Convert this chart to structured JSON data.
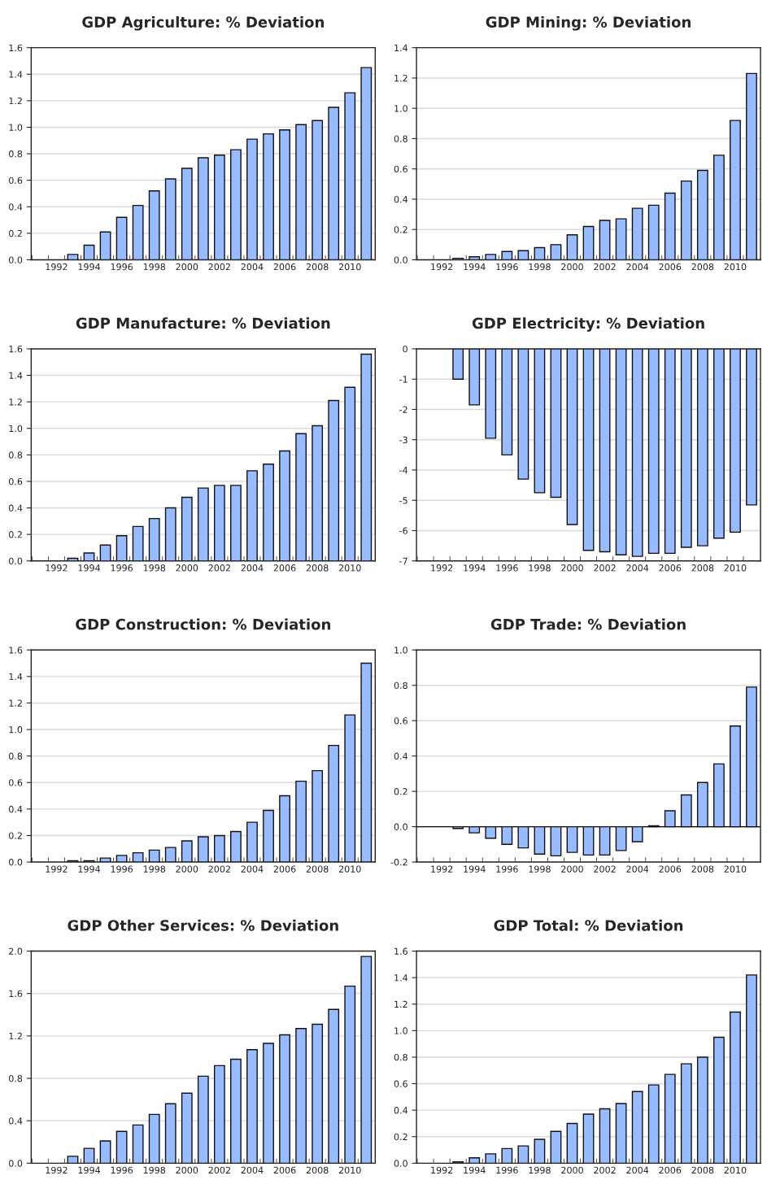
{
  "chart_data": [
    {
      "type": "bar",
      "title": "GDP Agriculture: % Deviation",
      "categories": [
        null,
        "1992",
        null,
        "1994",
        null,
        "1996",
        null,
        "1998",
        null,
        "2000",
        null,
        "2002",
        null,
        "2004",
        null,
        "2006",
        null,
        "2008",
        null,
        "2010",
        null
      ],
      "color": "#99bbff",
      "values": [
        null,
        null,
        0.04,
        0.11,
        0.21,
        0.32,
        0.41,
        0.52,
        0.61,
        0.69,
        0.77,
        0.79,
        0.83,
        0.91,
        0.95,
        0.98,
        1.02,
        1.05,
        1.15,
        1.26,
        1.45
      ],
      "ylim": [
        0,
        1.6
      ],
      "yticks": [
        {
          "value": 0,
          "label": "0.0"
        },
        {
          "value": 0.2,
          "label": "0.2"
        },
        {
          "value": 0.4,
          "label": "0.4"
        },
        {
          "value": 0.6,
          "label": "0.6"
        },
        {
          "value": 0.8,
          "label": "0.8"
        },
        {
          "value": 1.0,
          "label": "1.0"
        },
        {
          "value": 1.2,
          "label": "1.2"
        },
        {
          "value": 1.4,
          "label": "1.4"
        },
        {
          "value": 1.6,
          "label": "1.6"
        }
      ],
      "grid": "y"
    },
    {
      "type": "bar",
      "title": "GDP Mining: % Deviation",
      "categories": [
        null,
        "1992",
        null,
        "1994",
        null,
        "1996",
        null,
        "1998",
        null,
        "2000",
        null,
        "2002",
        null,
        "2004",
        null,
        "2006",
        null,
        "2008",
        null,
        "2010",
        null
      ],
      "color": "#99bbff",
      "values": [
        null,
        null,
        0.01,
        0.02,
        0.035,
        0.055,
        0.06,
        0.08,
        0.1,
        0.165,
        0.22,
        0.26,
        0.27,
        0.34,
        0.36,
        0.44,
        0.52,
        0.59,
        0.69,
        0.92,
        1.23
      ],
      "ylim": [
        0,
        1.4
      ],
      "yticks": [
        {
          "value": 0,
          "label": "0.0"
        },
        {
          "value": 0.2,
          "label": "0.2"
        },
        {
          "value": 0.4,
          "label": "0.4"
        },
        {
          "value": 0.6,
          "label": "0.6"
        },
        {
          "value": 0.8,
          "label": "0.8"
        },
        {
          "value": 1.0,
          "label": "1.0"
        },
        {
          "value": 1.2,
          "label": "1.2"
        },
        {
          "value": 1.4,
          "label": "1.4"
        }
      ],
      "grid": "y"
    },
    {
      "type": "bar",
      "title": "GDP Manufacture: % Deviation",
      "categories": [
        null,
        "1992",
        null,
        "1994",
        null,
        "1996",
        null,
        "1998",
        null,
        "2000",
        null,
        "2002",
        null,
        "2004",
        null,
        "2006",
        null,
        "2008",
        null,
        "2010",
        null
      ],
      "color": "#99bbff",
      "values": [
        null,
        null,
        0.02,
        0.06,
        0.12,
        0.19,
        0.26,
        0.32,
        0.4,
        0.48,
        0.55,
        0.57,
        0.57,
        0.68,
        0.73,
        0.83,
        0.96,
        1.02,
        1.21,
        1.31,
        1.56
      ],
      "ylim": [
        0,
        1.6
      ],
      "yticks": [
        {
          "value": 0,
          "label": "0.0"
        },
        {
          "value": 0.2,
          "label": "0.2"
        },
        {
          "value": 0.4,
          "label": "0.4"
        },
        {
          "value": 0.6,
          "label": "0.6"
        },
        {
          "value": 0.8,
          "label": "0.8"
        },
        {
          "value": 1.0,
          "label": "1.0"
        },
        {
          "value": 1.2,
          "label": "1.2"
        },
        {
          "value": 1.4,
          "label": "1.4"
        },
        {
          "value": 1.6,
          "label": "1.6"
        }
      ],
      "grid": "y"
    },
    {
      "type": "bar",
      "title": "GDP Electricity: % Deviation",
      "categories": [
        null,
        "1992",
        null,
        "1994",
        null,
        "1996",
        null,
        "1998",
        null,
        "2000",
        null,
        "2002",
        null,
        "2004",
        null,
        "2006",
        null,
        "2008",
        null,
        "2010",
        null
      ],
      "color": "#99bbff",
      "values": [
        null,
        null,
        -1.0,
        -1.85,
        -2.95,
        -3.5,
        -4.3,
        -4.75,
        -4.9,
        -5.8,
        -6.65,
        -6.7,
        -6.8,
        -6.85,
        -6.75,
        -6.75,
        -6.55,
        -6.5,
        -6.25,
        -6.05,
        -5.15
      ],
      "ylim": [
        -7,
        0
      ],
      "yticks": [
        -7,
        -6,
        -5,
        -4,
        -3,
        -2,
        -1,
        0
      ],
      "grid": "y"
    },
    {
      "type": "bar",
      "title": "GDP Construction: % Deviation",
      "categories": [
        null,
        "1992",
        null,
        "1994",
        null,
        "1996",
        null,
        "1998",
        null,
        "2000",
        null,
        "2002",
        null,
        "2004",
        null,
        "2006",
        null,
        "2008",
        null,
        "2010",
        null
      ],
      "color": "#99bbff",
      "values": [
        null,
        null,
        0.01,
        0.01,
        0.03,
        0.05,
        0.07,
        0.09,
        0.11,
        0.16,
        0.19,
        0.2,
        0.23,
        0.3,
        0.39,
        0.5,
        0.61,
        0.69,
        0.88,
        1.11,
        1.5
      ],
      "ylim": [
        0,
        1.6
      ],
      "yticks": [
        {
          "value": 0,
          "label": "0.0"
        },
        {
          "value": 0.2,
          "label": "0.2"
        },
        {
          "value": 0.4,
          "label": "0.4"
        },
        {
          "value": 0.6,
          "label": "0.6"
        },
        {
          "value": 0.8,
          "label": "0.8"
        },
        {
          "value": 1.0,
          "label": "1.0"
        },
        {
          "value": 1.2,
          "label": "1.2"
        },
        {
          "value": 1.4,
          "label": "1.4"
        },
        {
          "value": 1.6,
          "label": "1.6"
        }
      ],
      "grid": "y"
    },
    {
      "type": "bar",
      "title": "GDP Trade: % Deviation",
      "categories": [
        null,
        "1992",
        null,
        "1994",
        null,
        "1996",
        null,
        "1998",
        null,
        "2000",
        null,
        "2002",
        null,
        "2004",
        null,
        "2006",
        null,
        "2008",
        null,
        "2010",
        null
      ],
      "color": "#99bbff",
      "values": [
        null,
        null,
        -0.01,
        -0.035,
        -0.065,
        -0.1,
        -0.12,
        -0.155,
        -0.165,
        -0.145,
        -0.16,
        -0.16,
        -0.135,
        -0.085,
        0.005,
        0.09,
        0.18,
        0.25,
        0.355,
        0.57,
        0.79
      ],
      "ylim": [
        -0.2,
        1.0
      ],
      "yticks": [
        {
          "value": -0.2,
          "label": "-0.2"
        },
        {
          "value": 0,
          "label": "0.0"
        },
        {
          "value": 0.2,
          "label": "0.2"
        },
        {
          "value": 0.4,
          "label": "0.4"
        },
        {
          "value": 0.6,
          "label": "0.6"
        },
        {
          "value": 0.8,
          "label": "0.8"
        },
        {
          "value": 1.0,
          "label": "1.0"
        }
      ],
      "grid": "y",
      "ref_lines": [
        {
          "axis": "y",
          "value": 0,
          "color": "#000000"
        }
      ]
    },
    {
      "type": "bar",
      "title": "GDP Other Services: % Deviation",
      "categories": [
        null,
        "1992",
        null,
        "1994",
        null,
        "1996",
        null,
        "1998",
        null,
        "2000",
        null,
        "2002",
        null,
        "2004",
        null,
        "2006",
        null,
        "2008",
        null,
        "2010",
        null
      ],
      "color": "#99bbff",
      "values": [
        null,
        null,
        0.065,
        0.14,
        0.21,
        0.3,
        0.36,
        0.46,
        0.56,
        0.66,
        0.82,
        0.92,
        0.98,
        1.07,
        1.13,
        1.21,
        1.27,
        1.31,
        1.45,
        1.67,
        1.95
      ],
      "ylim": [
        0,
        2.0
      ],
      "yticks": [
        {
          "value": 0,
          "label": "0.0"
        },
        {
          "value": 0.4,
          "label": "0.4"
        },
        {
          "value": 0.8,
          "label": "0.8"
        },
        {
          "value": 1.2,
          "label": "1.2"
        },
        {
          "value": 1.6,
          "label": "1.6"
        },
        {
          "value": 2.0,
          "label": "2.0"
        }
      ],
      "grid": "y"
    },
    {
      "type": "bar",
      "title": "GDP Total: % Deviation",
      "categories": [
        null,
        "1992",
        null,
        "1994",
        null,
        "1996",
        null,
        "1998",
        null,
        "2000",
        null,
        "2002",
        null,
        "2004",
        null,
        "2006",
        null,
        "2008",
        null,
        "2010",
        null
      ],
      "color": "#99bbff",
      "values": [
        null,
        null,
        0.01,
        0.04,
        0.07,
        0.11,
        0.13,
        0.18,
        0.24,
        0.3,
        0.37,
        0.41,
        0.45,
        0.54,
        0.59,
        0.67,
        0.75,
        0.8,
        0.95,
        1.14,
        1.42
      ],
      "ylim": [
        0,
        1.6
      ],
      "yticks": [
        {
          "value": 0,
          "label": "0.0"
        },
        {
          "value": 0.2,
          "label": "0.2"
        },
        {
          "value": 0.4,
          "label": "0.4"
        },
        {
          "value": 0.6,
          "label": "0.6"
        },
        {
          "value": 0.8,
          "label": "0.8"
        },
        {
          "value": 1.0,
          "label": "1.0"
        },
        {
          "value": 1.2,
          "label": "1.2"
        },
        {
          "value": 1.4,
          "label": "1.4"
        },
        {
          "value": 1.6,
          "label": "1.6"
        }
      ],
      "grid": "y"
    }
  ]
}
